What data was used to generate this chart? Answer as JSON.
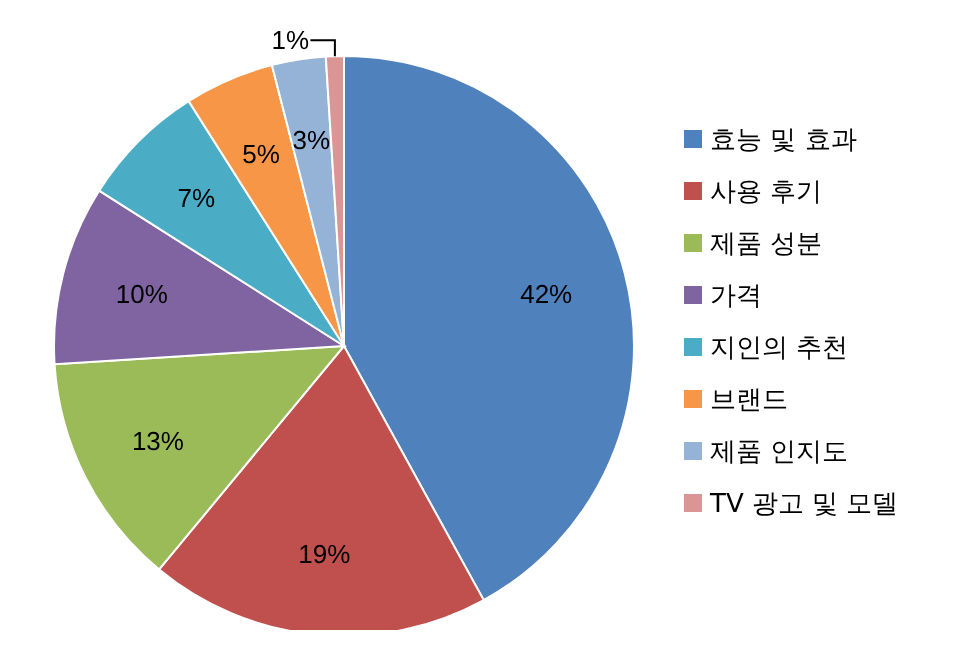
{
  "chart_data": {
    "type": "pie",
    "categories": [
      "효능 및 효과",
      "사용 후기",
      "제품 성분",
      "가격",
      "지인의 추천",
      "브랜드",
      "제품 인지도",
      "TV 광고 및 모델"
    ],
    "values": [
      42,
      19,
      13,
      10,
      7,
      5,
      3,
      1
    ],
    "colors": [
      "#4f81bd",
      "#c0504d",
      "#9bbb59",
      "#8064a2",
      "#4bacc6",
      "#f79646",
      "#95b3d7",
      "#d99694"
    ],
    "value_labels": [
      "42%",
      "19%",
      "13%",
      "10%",
      "7%",
      "5%",
      "3%",
      "1%"
    ],
    "legend": "right"
  }
}
